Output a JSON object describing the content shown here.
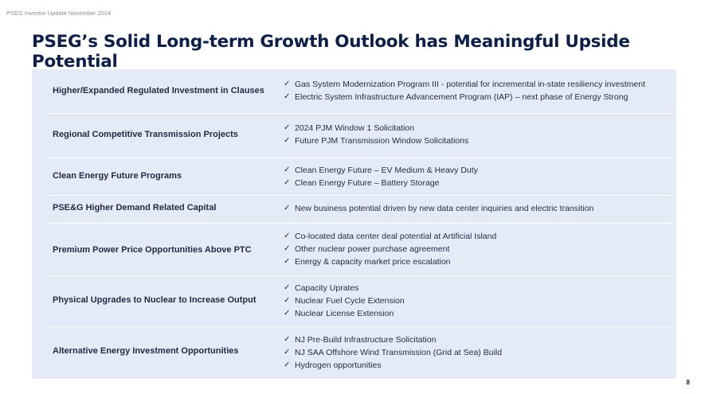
{
  "header_note": "PSEG Investor Update November 2024",
  "title": "PSEG’s Solid Long-term Growth Outlook has Meaningful Upside Potential",
  "check_glyph": "✓",
  "rows": [
    {
      "category": "Higher/Expanded Regulated Investment in Clauses",
      "items": [
        "Gas System Modernization Program III - potential for incremental in-state resiliency investment",
        "Electric System Infrastructure Advancement Program (IAP) – next phase of Energy Strong"
      ]
    },
    {
      "category": "Regional Competitive Transmission Projects",
      "items": [
        "2024 PJM Window 1 Solicitation",
        "Future PJM Transmission Window Solicitations"
      ]
    },
    {
      "category": "Clean Energy Future Programs",
      "items": [
        "Clean Energy Future – EV Medium & Heavy Duty",
        "Clean Energy Future – Battery Storage"
      ]
    },
    {
      "category": "PSE&G Higher Demand Related Capital",
      "items": [
        "New business potential driven by new data center inquiries and electric transition"
      ]
    },
    {
      "category": "Premium Power Price Opportunities Above PTC",
      "items": [
        "Co-located data center deal potential at Artificial Island",
        "Other nuclear power purchase agreement",
        "Energy & capacity market price escalation"
      ]
    },
    {
      "category": "Physical Upgrades to Nuclear to Increase Output",
      "items": [
        "Capacity Uprates",
        "Nuclear Fuel Cycle Extension",
        "Nuclear License Extension"
      ]
    },
    {
      "category": "Alternative Energy Investment Opportunities",
      "items": [
        "NJ Pre-Build Infrastructure Solicitation",
        "NJ SAA Offshore Wind Transmission (Grid at Sea) Build",
        "Hydrogen opportunities"
      ]
    }
  ],
  "page_number": "8"
}
